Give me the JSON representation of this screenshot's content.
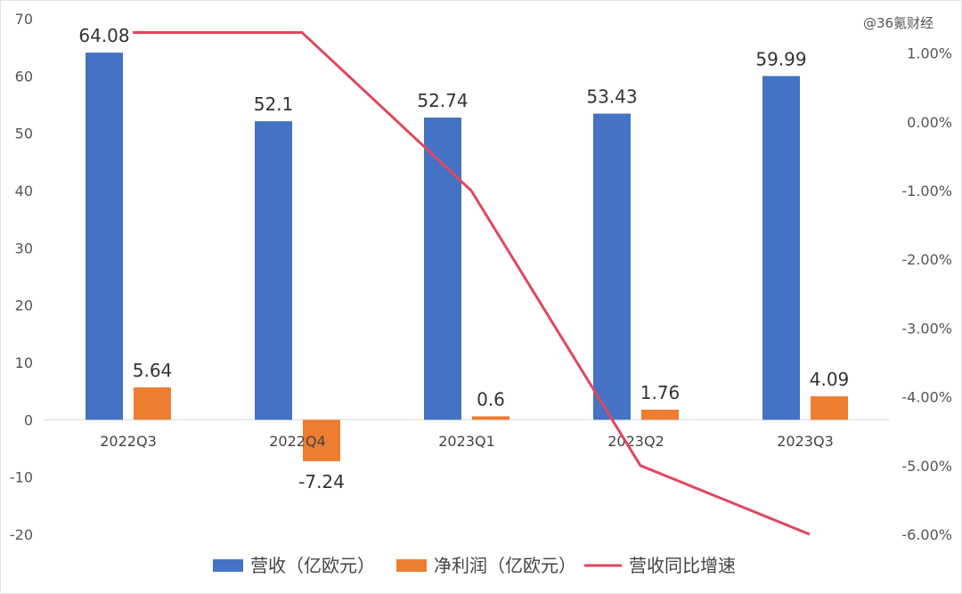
{
  "watermark": "@36氪财经",
  "chart_data": {
    "type": "bar",
    "categories": [
      "2022Q3",
      "2022Q4",
      "2023Q1",
      "2023Q2",
      "2023Q3"
    ],
    "series": [
      {
        "name": "营收（亿欧元）",
        "type": "bar",
        "axis": "left",
        "color": "#4472C4",
        "values": [
          64.08,
          52.1,
          52.74,
          53.43,
          59.99
        ],
        "labels": [
          "64.08",
          "52.1",
          "52.74",
          "53.43",
          "59.99"
        ]
      },
      {
        "name": "净利润（亿欧元）",
        "type": "bar",
        "axis": "left",
        "color": "#ED7D31",
        "values": [
          5.64,
          -7.24,
          0.6,
          1.76,
          4.09
        ],
        "labels": [
          "5.64",
          "-7.24",
          "0.6",
          "1.76",
          "4.09"
        ]
      },
      {
        "name": "营收同比增速",
        "type": "line",
        "axis": "right",
        "color": "#E0475E",
        "values": [
          1.3,
          1.3,
          -1.0,
          -5.0,
          -6.0
        ]
      }
    ],
    "y_left": {
      "ylim": [
        -20,
        70
      ],
      "ticks": [
        70,
        60,
        50,
        40,
        30,
        20,
        10,
        0,
        -10,
        -20
      ],
      "tick_labels": [
        "70",
        "60",
        "50",
        "40",
        "30",
        "20",
        "10",
        "0",
        "-10",
        "-20"
      ]
    },
    "y_right": {
      "ylim": [
        -6,
        1.5
      ],
      "ticks": [
        1,
        0,
        -1,
        -2,
        -3,
        -4,
        -5,
        -6
      ],
      "tick_labels": [
        "1.00%",
        "0.00%",
        "-1.00%",
        "-2.00%",
        "-3.00%",
        "-4.00%",
        "-5.00%",
        "-6.00%"
      ]
    },
    "legend": "bottom",
    "grid": false
  }
}
